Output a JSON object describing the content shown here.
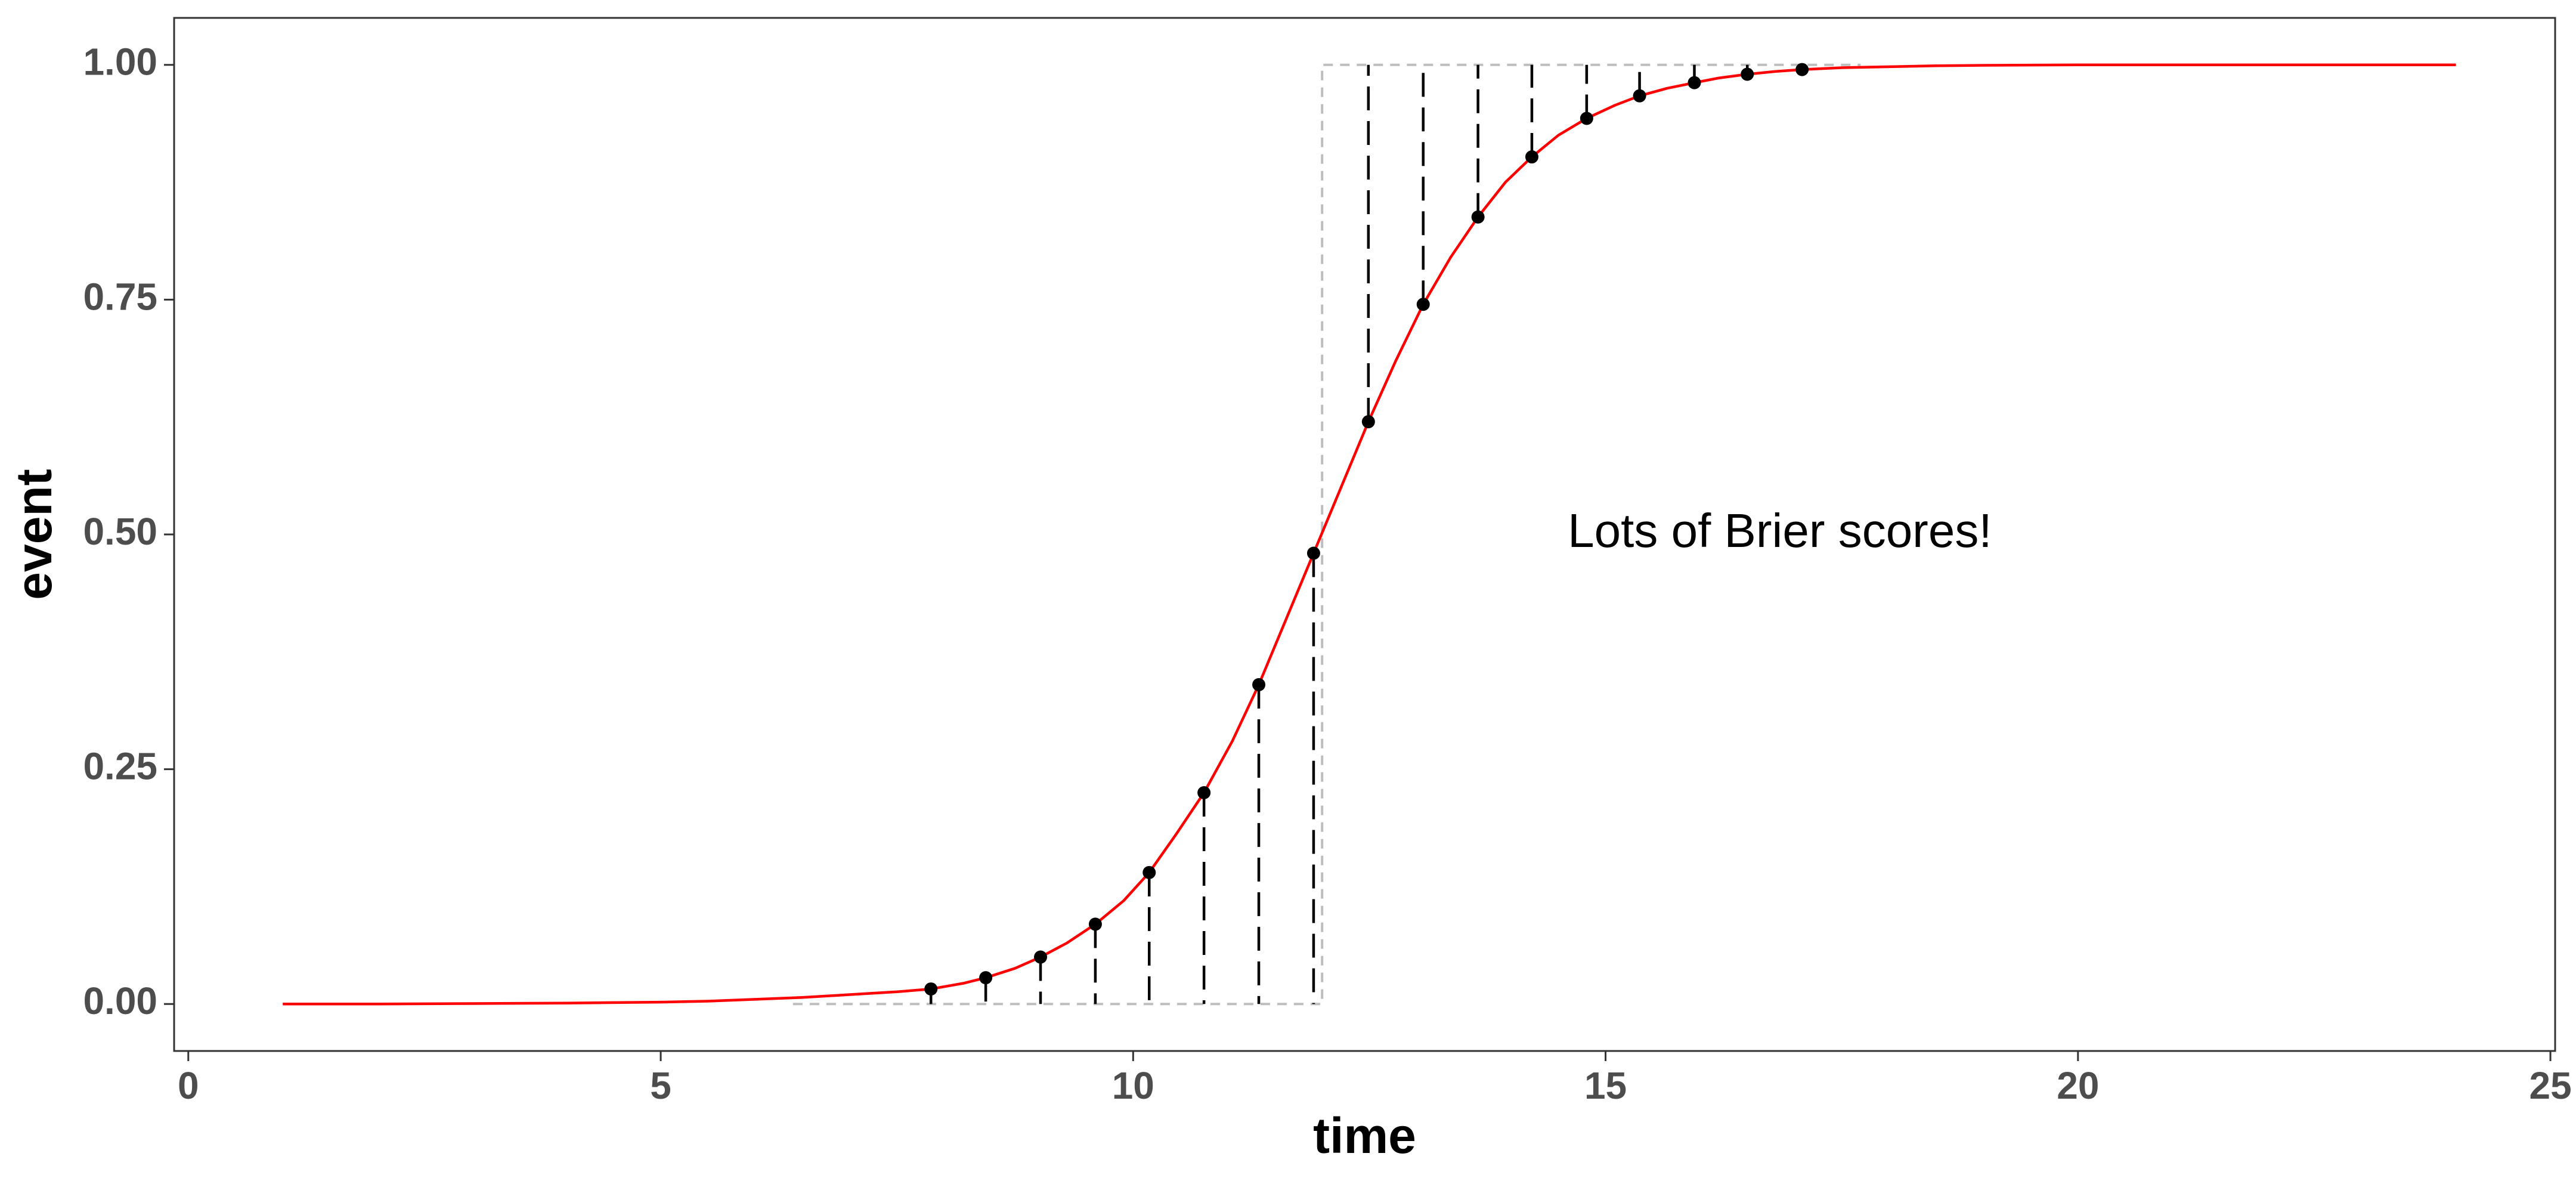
{
  "chart_data": {
    "type": "line",
    "xlabel": "time",
    "ylabel": "event",
    "xlim": [
      -0.15,
      25.05
    ],
    "ylim": [
      -0.05,
      1.05
    ],
    "x_ticks": [
      0,
      5,
      10,
      15,
      20,
      25
    ],
    "y_ticks": [
      0.0,
      0.25,
      0.5,
      0.75,
      1.0
    ],
    "x_tick_labels": [
      "0",
      "5",
      "10",
      "15",
      "20",
      "25"
    ],
    "y_tick_labels": [
      "0.00",
      "0.25",
      "0.50",
      "0.75",
      "1.00"
    ],
    "grid": false,
    "legend": "none",
    "annotation": {
      "text": "Lots of Brier scores!",
      "x": 14.6,
      "y": 0.5
    },
    "curve": {
      "color": "#ff0000",
      "x": [
        1.0,
        2.0,
        3.0,
        4.0,
        5.0,
        5.5,
        6.0,
        6.5,
        7.0,
        7.5,
        7.86,
        8.2,
        8.44,
        8.75,
        9.02,
        9.3,
        9.6,
        9.9,
        10.17,
        10.45,
        10.75,
        11.05,
        11.33,
        11.62,
        11.91,
        12.2,
        12.49,
        12.78,
        13.07,
        13.36,
        13.65,
        13.94,
        14.22,
        14.5,
        14.8,
        15.1,
        15.36,
        15.65,
        15.94,
        16.2,
        16.5,
        16.8,
        17.08,
        17.5,
        18.0,
        18.5,
        19.0,
        20.0,
        21.0,
        22.0,
        23.0,
        24.0
      ],
      "y": [
        0.0,
        0.0,
        0.0005,
        0.001,
        0.002,
        0.003,
        0.005,
        0.007,
        0.01,
        0.013,
        0.016,
        0.022,
        0.028,
        0.038,
        0.05,
        0.065,
        0.085,
        0.11,
        0.14,
        0.18,
        0.225,
        0.28,
        0.34,
        0.41,
        0.48,
        0.55,
        0.62,
        0.685,
        0.745,
        0.795,
        0.838,
        0.875,
        0.902,
        0.925,
        0.943,
        0.957,
        0.967,
        0.975,
        0.981,
        0.986,
        0.99,
        0.993,
        0.995,
        0.997,
        0.998,
        0.999,
        0.9995,
        1.0,
        1.0,
        1.0,
        1.0,
        1.0
      ]
    },
    "step_outcome": {
      "color": "#bebebe",
      "x": [
        6.4,
        12.0,
        12.0,
        17.7
      ],
      "y": [
        0.0,
        0.0,
        1.0,
        1.0
      ]
    },
    "points": {
      "color": "#000000",
      "x": [
        7.86,
        8.44,
        9.02,
        9.6,
        10.17,
        10.75,
        11.33,
        11.91,
        12.49,
        13.07,
        13.65,
        14.22,
        14.8,
        15.36,
        15.94,
        16.5,
        17.08
      ],
      "y": [
        0.016,
        0.028,
        0.05,
        0.085,
        0.14,
        0.225,
        0.34,
        0.48,
        0.62,
        0.745,
        0.838,
        0.902,
        0.943,
        0.967,
        0.981,
        0.99,
        0.995
      ],
      "observed": [
        0,
        0,
        0,
        0,
        0,
        0,
        0,
        0,
        1,
        1,
        1,
        1,
        1,
        1,
        1,
        1,
        1
      ]
    }
  }
}
